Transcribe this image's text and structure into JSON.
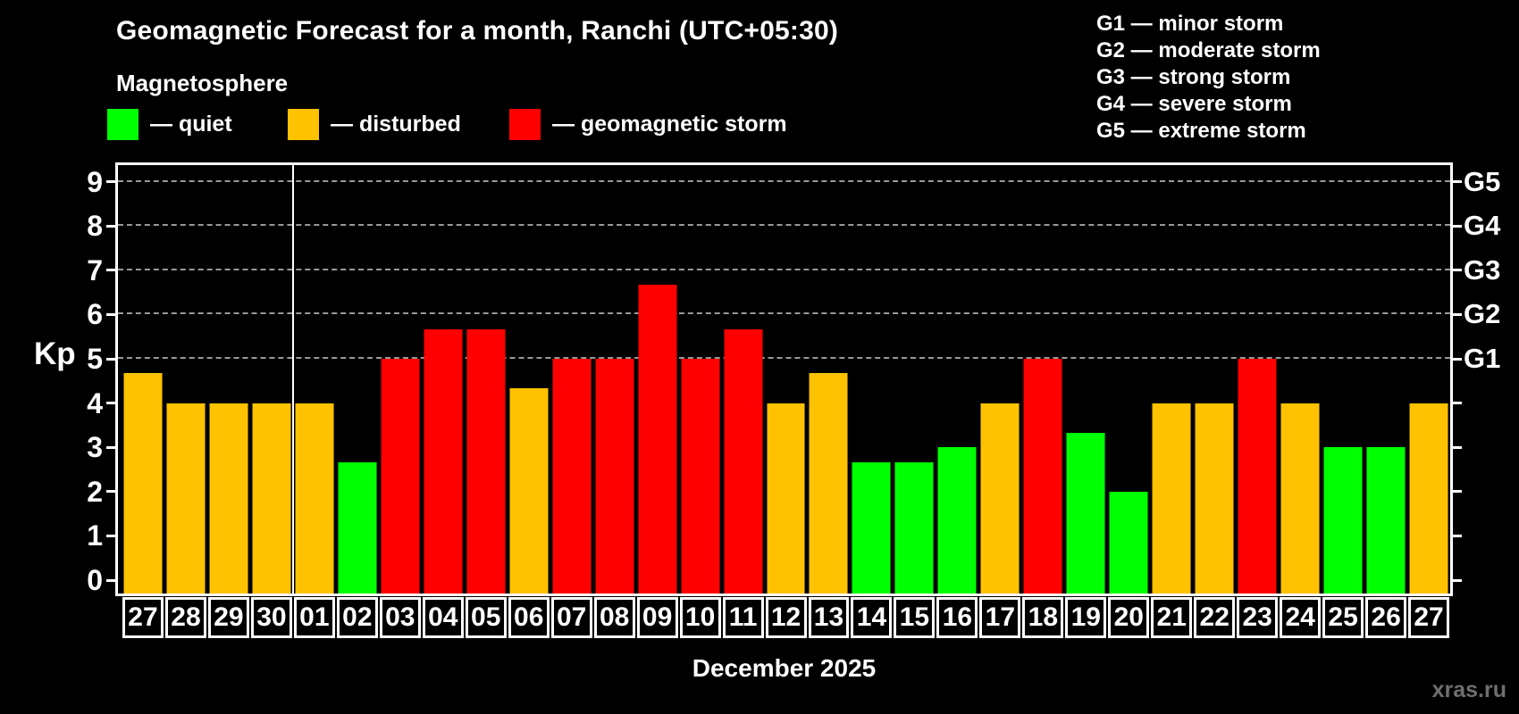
{
  "header": {
    "title": "Geomagnetic Forecast for a month, Ranchi (UTC+05:30)",
    "subtitle": "Magnetosphere"
  },
  "legend": {
    "items": [
      {
        "key": "quiet",
        "label": "— quiet",
        "color": "#00ff00"
      },
      {
        "key": "disturbed",
        "label": "— disturbed",
        "color": "#ffc200"
      },
      {
        "key": "storm",
        "label": "— geomagnetic storm",
        "color": "#ff0000"
      }
    ]
  },
  "g_legend": [
    "G1 — minor storm",
    "G2 — moderate storm",
    "G3 — strong storm",
    "G4 — severe storm",
    "G5 — extreme storm"
  ],
  "watermark": "xras.ru",
  "chart_data": {
    "type": "bar",
    "title": "Geomagnetic Forecast for a month, Ranchi (UTC+05:30)",
    "xlabel": "December 2025",
    "ylabel": "Kp",
    "ylim": [
      0,
      9
    ],
    "grid": "dashed horizontal lines at Kp 5-9 (G1-G5)",
    "grid_levels": [
      5,
      6,
      7,
      8,
      9
    ],
    "y_ticks": [
      0,
      1,
      2,
      3,
      4,
      5,
      6,
      7,
      8,
      9
    ],
    "right_axis": [
      {
        "kp": 5,
        "label": "G1"
      },
      {
        "kp": 6,
        "label": "G2"
      },
      {
        "kp": 7,
        "label": "G3"
      },
      {
        "kp": 8,
        "label": "G4"
      },
      {
        "kp": 9,
        "label": "G5"
      }
    ],
    "categories": [
      "27",
      "28",
      "29",
      "30",
      "01",
      "02",
      "03",
      "04",
      "05",
      "06",
      "07",
      "08",
      "09",
      "10",
      "11",
      "12",
      "13",
      "14",
      "15",
      "16",
      "17",
      "18",
      "19",
      "20",
      "21",
      "22",
      "23",
      "24",
      "25",
      "26",
      "27"
    ],
    "values": [
      4.67,
      4,
      4,
      4,
      4,
      2.67,
      5,
      5.67,
      5.67,
      4.33,
      5,
      5,
      6.67,
      5,
      5.67,
      4,
      4.67,
      2.67,
      2.67,
      3,
      4,
      5,
      3.33,
      2,
      4,
      4,
      5,
      4,
      3,
      3,
      4
    ],
    "statuses": [
      "disturbed",
      "disturbed",
      "disturbed",
      "disturbed",
      "disturbed",
      "quiet",
      "storm",
      "storm",
      "storm",
      "disturbed",
      "storm",
      "storm",
      "storm",
      "storm",
      "storm",
      "disturbed",
      "disturbed",
      "quiet",
      "quiet",
      "quiet",
      "disturbed",
      "storm",
      "quiet",
      "quiet",
      "disturbed",
      "disturbed",
      "storm",
      "disturbed",
      "quiet",
      "quiet",
      "disturbed"
    ],
    "status_colors": {
      "quiet": "#00ff00",
      "disturbed": "#ffc200",
      "storm": "#ff0000"
    },
    "month_divider_after_index": 3
  }
}
